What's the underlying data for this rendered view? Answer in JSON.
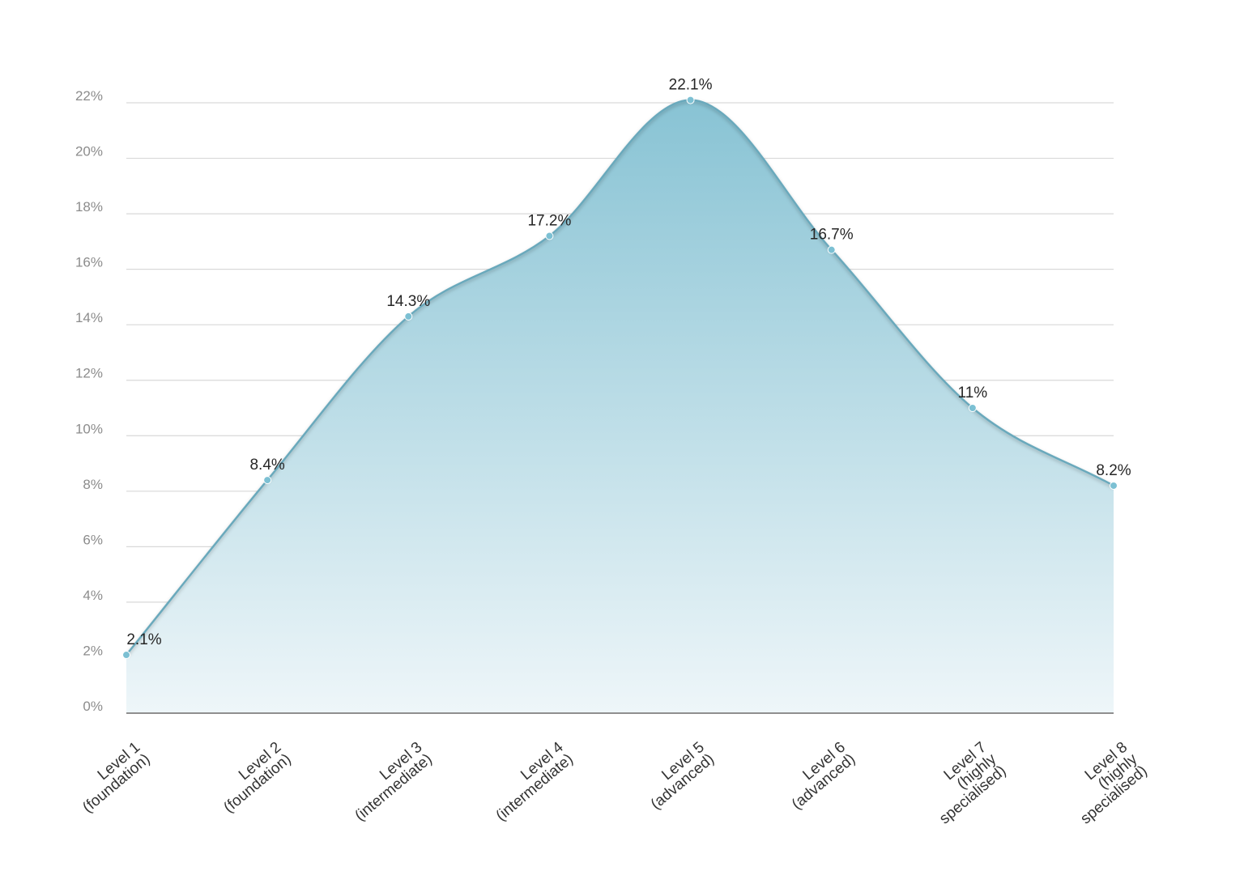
{
  "chart_data": {
    "type": "area",
    "categories": [
      [
        "Level 1",
        "(foundation)"
      ],
      [
        "Level 2",
        "(foundation)"
      ],
      [
        "Level 3",
        "(intermediate)"
      ],
      [
        "Level 4",
        "(intermediate)"
      ],
      [
        "Level 5",
        "(advanced)"
      ],
      [
        "Level 6",
        "(advanced)"
      ],
      [
        "Level 7",
        "(highly",
        "specialised)"
      ],
      [
        "Level 8",
        "(highly",
        "specialised)"
      ]
    ],
    "series": [
      {
        "values": [
          2.1,
          8.4,
          14.3,
          17.2,
          22.1,
          16.7,
          11,
          8.2
        ],
        "data_labels": [
          "2.1%",
          "8.4%",
          "14.3%",
          "17.2%",
          "22.1%",
          "16.7%",
          "11%",
          "8.2%"
        ]
      }
    ],
    "y_ticks": [
      0,
      2,
      4,
      6,
      8,
      10,
      12,
      14,
      16,
      18,
      20,
      22
    ],
    "y_tick_labels": [
      "0%",
      "2%",
      "4%",
      "6%",
      "8%",
      "10%",
      "12%",
      "14%",
      "16%",
      "18%",
      "20%",
      "22%"
    ],
    "ylim": [
      0,
      22
    ],
    "grid": true,
    "legend": "none",
    "colors": {
      "line": "#6aa9bc",
      "fill_top": "#88c3d4",
      "fill_bottom": "#eef6f9",
      "marker": "#7cc0d3",
      "grid": "#d9d9d9",
      "axis": "#8f8f8f"
    }
  }
}
